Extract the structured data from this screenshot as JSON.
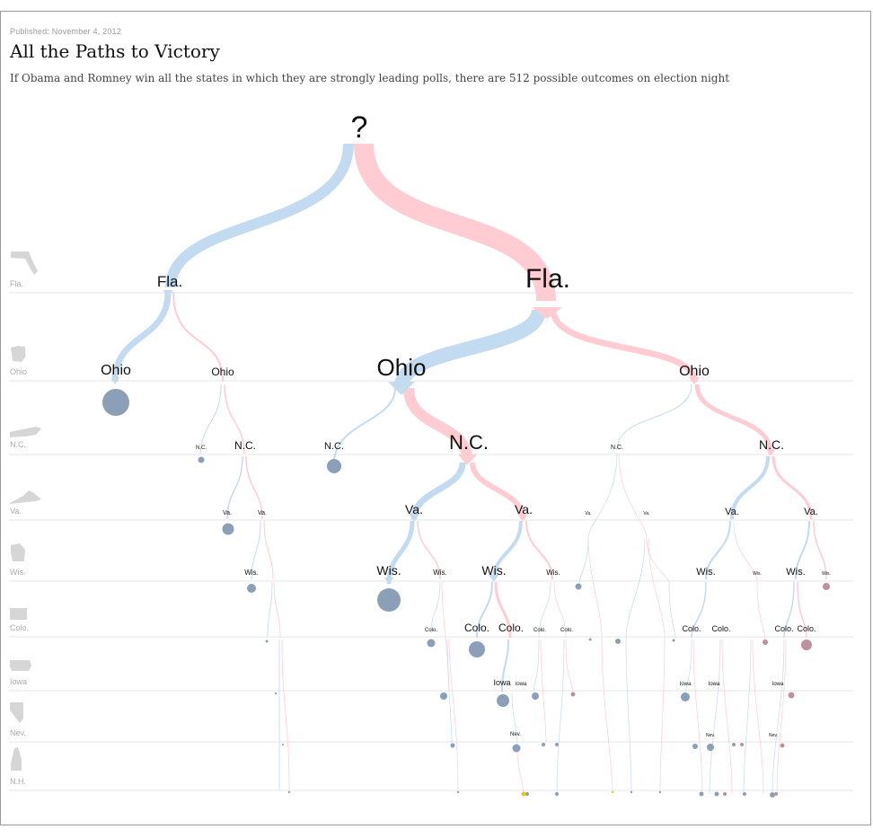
{
  "header": {
    "published": "Published: November 4, 2012",
    "title": "All the Paths to Victory",
    "subtitle": "If Obama and Romney win all the states in which they are strongly leading polls, there are 512 possible outcomes on election night"
  },
  "colors": {
    "obama_path": "#c3dbf0",
    "romney_path": "#ffccd3",
    "obama_win": "#8ba0b8",
    "romney_win": "#c0909c",
    "tie": "#f0c020",
    "row_line": "#e6e6e6"
  },
  "root_label": "?",
  "rows": [
    {
      "state": "Fla.",
      "icon": "florida-icon"
    },
    {
      "state": "Ohio",
      "icon": "ohio-icon"
    },
    {
      "state": "N.C.",
      "icon": "north-carolina-icon"
    },
    {
      "state": "Va.",
      "icon": "virginia-icon"
    },
    {
      "state": "Wis.",
      "icon": "wisconsin-icon"
    },
    {
      "state": "Colo.",
      "icon": "colorado-icon"
    },
    {
      "state": "Iowa",
      "icon": "iowa-icon"
    },
    {
      "state": "Nev.",
      "icon": "nevada-icon"
    },
    {
      "state": "N.H.",
      "icon": "new-hampshire-icon"
    }
  ],
  "node_labels": {
    "fla": "Fla.",
    "ohio": "Ohio",
    "nc": "N.C.",
    "va": "Va.",
    "wis": "Wis.",
    "colo": "Colo.",
    "iowa": "Iowa",
    "nev": "Nev."
  }
}
